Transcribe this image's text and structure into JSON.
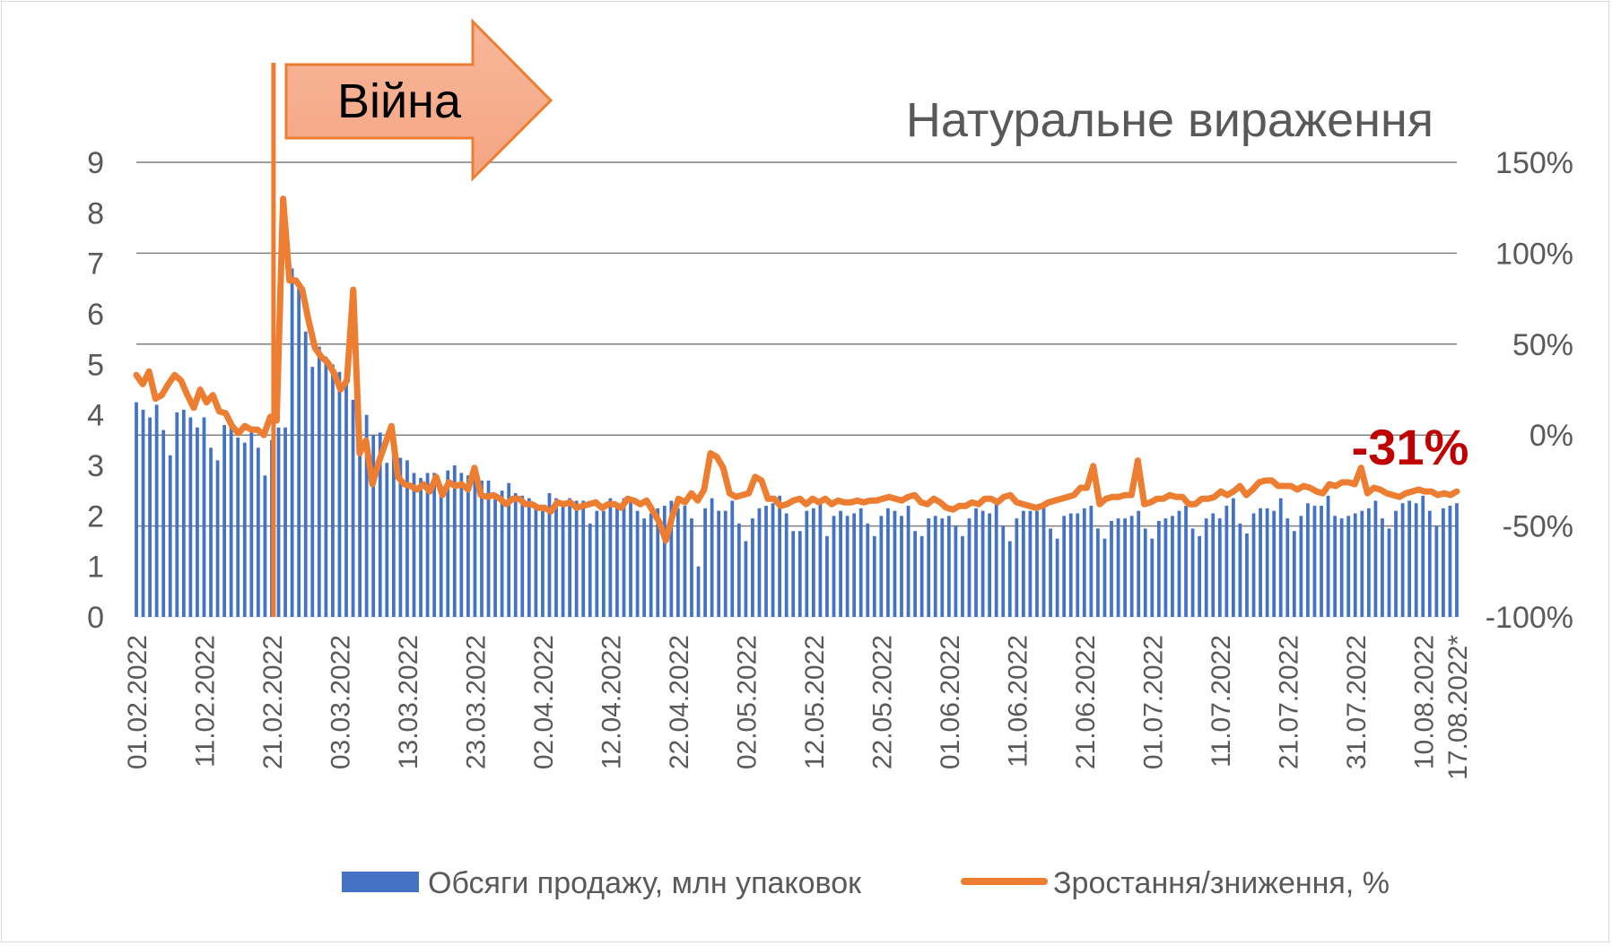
{
  "chart_data": {
    "type": "bar+line",
    "title": "Натуральне вираження",
    "annotation_war": "Війна",
    "callout": "-31%",
    "colors": {
      "bars": "#4472c4",
      "line": "#ed7d31",
      "arrow_fill_top": "#f8b79a",
      "arrow_fill_bottom": "#f4a582",
      "arrow_stroke": "#ed7d31",
      "callout": "#c00000",
      "grid": "#7f7f7f",
      "text": "#595959"
    },
    "y_left": {
      "min": 0,
      "max": 9,
      "ticks": [
        "0",
        "1",
        "2",
        "3",
        "4",
        "5",
        "6",
        "7",
        "8",
        "9"
      ]
    },
    "y_right": {
      "min": -100,
      "max": 150,
      "ticks": [
        "-100%",
        "-50%",
        "0%",
        "50%",
        "100%",
        "150%"
      ]
    },
    "date_labels": [
      "01.02.2022",
      "11.02.2022",
      "21.02.2022",
      "03.03.2022",
      "13.03.2022",
      "23.03.2022",
      "02.04.2022",
      "12.04.2022",
      "22.04.2022",
      "02.05.2022",
      "12.05.2022",
      "22.05.2022",
      "01.06.2022",
      "11.06.2022",
      "21.06.2022",
      "01.07.2022",
      "11.07.2022",
      "21.07.2022",
      "31.07.2022",
      "10.08.2022",
      "17.08.2022*"
    ],
    "series": [
      {
        "name": "Обсяги продажу, млн упаковок",
        "type": "bar",
        "values": [
          4.25,
          4.1,
          3.95,
          4.2,
          3.7,
          3.2,
          4.05,
          4.1,
          3.95,
          3.75,
          3.95,
          3.35,
          3.1,
          3.8,
          3.85,
          3.55,
          3.45,
          3.7,
          3.35,
          2.8,
          3.5,
          3.75,
          3.75,
          6.9,
          6.5,
          5.65,
          4.95,
          5.35,
          5.15,
          5.0,
          4.85,
          4.75,
          4.3,
          3.75,
          4.0,
          3.6,
          3.65,
          3.05,
          3.3,
          3.15,
          3.1,
          2.85,
          2.75,
          2.85,
          2.85,
          2.4,
          2.9,
          3.0,
          2.85,
          2.8,
          2.75,
          2.7,
          2.7,
          2.35,
          2.5,
          2.65,
          2.45,
          2.4,
          2.35,
          2.2,
          2.1,
          2.45,
          2.35,
          2.3,
          2.35,
          2.3,
          2.3,
          1.85,
          2.1,
          2.1,
          2.35,
          2.2,
          2.35,
          2.3,
          2.1,
          1.95,
          2.05,
          2.15,
          2.2,
          2.3,
          2.15,
          2.2,
          1.95,
          1.0,
          2.15,
          2.35,
          2.1,
          2.1,
          2.3,
          1.85,
          1.5,
          1.95,
          2.15,
          2.2,
          2.25,
          2.4,
          2.05,
          1.7,
          1.7,
          2.1,
          2.15,
          2.3,
          1.6,
          2.0,
          2.1,
          2.0,
          2.05,
          2.15,
          1.85,
          1.6,
          2.0,
          2.15,
          2.1,
          2.0,
          2.2,
          1.7,
          1.6,
          1.95,
          2.0,
          1.95,
          2.0,
          1.8,
          1.6,
          1.95,
          2.15,
          2.1,
          2.05,
          2.25,
          1.8,
          1.5,
          1.95,
          2.1,
          2.1,
          2.1,
          2.2,
          1.75,
          1.55,
          2.0,
          2.05,
          2.05,
          2.15,
          2.2,
          1.75,
          1.55,
          1.9,
          1.95,
          1.95,
          2.0,
          2.1,
          1.75,
          1.55,
          1.9,
          1.95,
          2.0,
          2.1,
          2.2,
          1.75,
          1.6,
          1.95,
          2.05,
          1.95,
          2.2,
          2.35,
          1.85,
          1.65,
          2.05,
          2.15,
          2.15,
          2.1,
          2.35,
          1.95,
          1.7,
          2.0,
          2.25,
          2.2,
          2.2,
          2.4,
          2.0,
          1.95,
          2.0,
          2.05,
          2.1,
          2.15,
          2.3,
          1.95,
          1.75,
          2.1,
          2.25,
          2.3,
          2.25,
          2.4,
          2.1,
          1.8,
          2.15,
          2.2,
          2.25
        ]
      },
      {
        "name": "Зростання/зниження, %",
        "type": "line",
        "values": [
          33,
          28,
          35,
          20,
          22,
          28,
          33,
          30,
          22,
          15,
          25,
          18,
          22,
          13,
          12,
          5,
          1,
          5,
          3,
          3,
          0,
          10,
          8,
          130,
          85,
          85,
          80,
          63,
          48,
          43,
          40,
          34,
          25,
          30,
          80,
          -10,
          -3,
          -27,
          -15,
          -5,
          5,
          -23,
          -27,
          -28,
          -30,
          -27,
          -31,
          -23,
          -33,
          -26,
          -28,
          -27,
          -30,
          -18,
          -33,
          -34,
          -33,
          -35,
          -38,
          -35,
          -35,
          -38,
          -38,
          -40,
          -40,
          -42,
          -37,
          -38,
          -37,
          -40,
          -39,
          -38,
          -37,
          -40,
          -38,
          -38,
          -40,
          -35,
          -36,
          -38,
          -36,
          -42,
          -48,
          -58,
          -45,
          -35,
          -37,
          -32,
          -36,
          -30,
          -10,
          -12,
          -18,
          -32,
          -34,
          -33,
          -32,
          -23,
          -25,
          -35,
          -35,
          -39,
          -38,
          -36,
          -35,
          -38,
          -35,
          -37,
          -35,
          -38,
          -36,
          -37,
          -37,
          -36,
          -37,
          -36,
          -36,
          -35,
          -34,
          -35,
          -36,
          -34,
          -33,
          -37,
          -38,
          -35,
          -37,
          -40,
          -41,
          -39,
          -39,
          -37,
          -38,
          -35,
          -35,
          -37,
          -34,
          -33,
          -37,
          -38,
          -39,
          -40,
          -39,
          -37,
          -36,
          -35,
          -34,
          -33,
          -29,
          -29,
          -17,
          -38,
          -35,
          -34,
          -34,
          -33,
          -33,
          -14,
          -38,
          -37,
          -35,
          -35,
          -33,
          -34,
          -34,
          -38,
          -38,
          -35,
          -35,
          -34,
          -31,
          -33,
          -31,
          -28,
          -33,
          -30,
          -26,
          -25,
          -25,
          -28,
          -28,
          -28,
          -30,
          -28,
          -29,
          -31,
          -32,
          -27,
          -28,
          -26,
          -26,
          -27,
          -18,
          -32,
          -29,
          -30,
          -32,
          -33,
          -34,
          -32,
          -31,
          -30,
          -31,
          -31,
          -33,
          -32,
          -33,
          -31
        ]
      }
    ]
  }
}
